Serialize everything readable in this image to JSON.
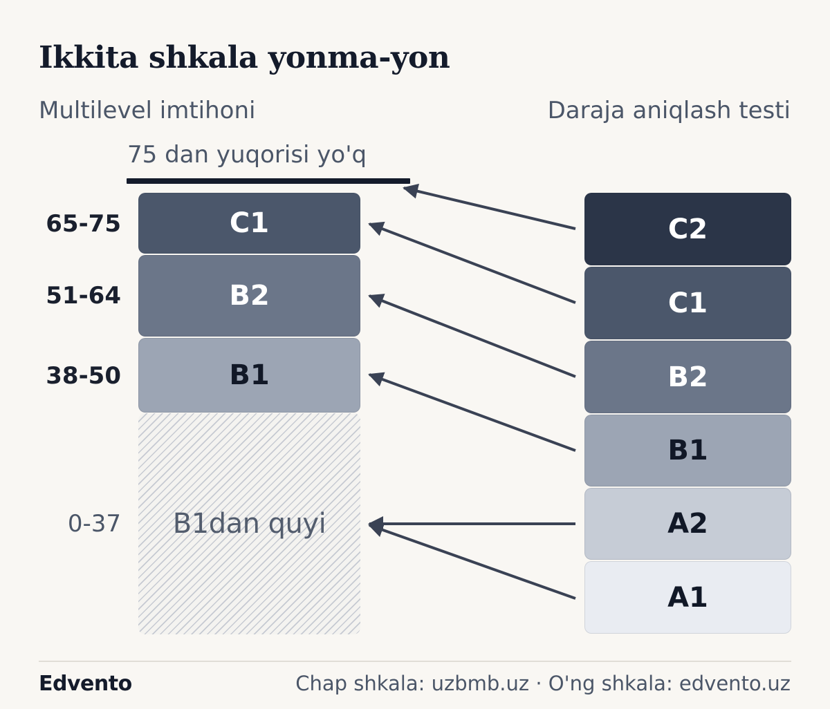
{
  "title": "Ikkita shkala yonma-yon",
  "left_heading": "Multilevel imtihoni",
  "right_heading": "Daraja aniqlash testi",
  "cap_label": "75 dan yuqorisi yo'q",
  "left_scale": [
    {
      "level": "C1",
      "score": "65-75"
    },
    {
      "level": "B2",
      "score": "51-64"
    },
    {
      "level": "B1",
      "score": "38-50"
    },
    {
      "level": "B1dan quyi",
      "score": "0-37"
    }
  ],
  "right_scale": [
    "C2",
    "C1",
    "B2",
    "B1",
    "A2",
    "A1"
  ],
  "mapping": [
    {
      "from": "C2",
      "to": "75 dan yuqorisi yo'q"
    },
    {
      "from": "C1",
      "to": "C1"
    },
    {
      "from": "B2",
      "to": "B2"
    },
    {
      "from": "B1",
      "to": "B1"
    },
    {
      "from": "A2",
      "to": "B1dan quyi"
    },
    {
      "from": "A1",
      "to": "B1dan quyi"
    }
  ],
  "colors": {
    "C2": "#2b3548",
    "C1": "#4b576b",
    "B2": "#6b7689",
    "B1": "#9ca5b4",
    "A2": "#c6ccd6",
    "A1": "#e9ecf2",
    "arrow": "#3a4254",
    "background": "#f9f7f3"
  },
  "footer": {
    "brand": "Edvento",
    "source": "Chap shkala: uzbmb.uz  ·  O'ng shkala: edvento.uz"
  }
}
